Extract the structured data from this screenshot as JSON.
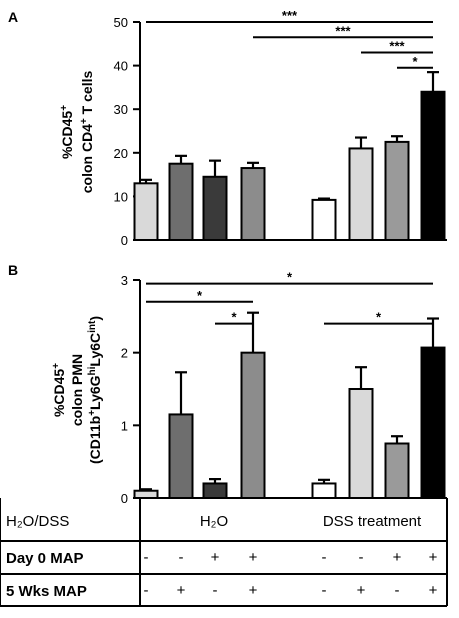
{
  "chart_data": [
    {
      "type": "bar",
      "panel": "A",
      "ylabel": [
        "%CD45",
        "colon CD4",
        "T cells"
      ],
      "ylim": [
        0,
        50
      ],
      "yticks": [
        "0",
        "10",
        "20",
        "30",
        "40",
        "50"
      ],
      "bars": [
        {
          "value": 13.0,
          "err": 0.8,
          "fill": "#d9d9d9"
        },
        {
          "value": 17.5,
          "err": 1.8,
          "fill": "#6e6e6e"
        },
        {
          "value": 14.5,
          "err": 3.7,
          "fill": "#3a3a3a"
        },
        {
          "value": 16.5,
          "err": 1.2,
          "fill": "#8c8c8c"
        },
        {
          "value": 9.2,
          "err": 0.3,
          "fill": "#ffffff"
        },
        {
          "value": 21.0,
          "err": 2.5,
          "fill": "#d9d9d9"
        },
        {
          "value": 22.5,
          "err": 1.3,
          "fill": "#9a9a9a"
        },
        {
          "value": 34.0,
          "err": 4.5,
          "fill": "#000000"
        }
      ],
      "significance": [
        {
          "from": 0,
          "to": 7,
          "y": 50,
          "label": "***"
        },
        {
          "from": 3,
          "to": 7,
          "y": 46.5,
          "label": "***"
        },
        {
          "from": 5,
          "to": 7,
          "y": 43,
          "label": "***"
        },
        {
          "from": 6,
          "to": 7,
          "y": 39.5,
          "label": "*"
        }
      ]
    },
    {
      "type": "bar",
      "panel": "B",
      "ylabel": [
        "%CD45",
        "colon PMN",
        "(CD11b",
        "Ly6G",
        "Ly6C",
        ")"
      ],
      "ylim": [
        0,
        3
      ],
      "yticks": [
        "0",
        "1",
        "2",
        "3"
      ],
      "bars": [
        {
          "value": 0.1,
          "err": 0.02,
          "fill": "#d9d9d9"
        },
        {
          "value": 1.15,
          "err": 0.58,
          "fill": "#6e6e6e"
        },
        {
          "value": 0.2,
          "err": 0.06,
          "fill": "#3a3a3a"
        },
        {
          "value": 2.0,
          "err": 0.55,
          "fill": "#8c8c8c"
        },
        {
          "value": 0.2,
          "err": 0.05,
          "fill": "#ffffff"
        },
        {
          "value": 1.5,
          "err": 0.3,
          "fill": "#d9d9d9"
        },
        {
          "value": 0.75,
          "err": 0.1,
          "fill": "#9a9a9a"
        },
        {
          "value": 2.07,
          "err": 0.4,
          "fill": "#000000"
        }
      ],
      "significance": [
        {
          "from": 0,
          "to": 7,
          "y": 2.95,
          "label": "*"
        },
        {
          "from": 0,
          "to": 3,
          "y": 2.7,
          "label": "*"
        },
        {
          "from": 2,
          "to": 3,
          "y": 2.4,
          "label": "*"
        },
        {
          "from": 4,
          "to": 7,
          "y": 2.4,
          "label": "*"
        }
      ]
    }
  ],
  "table": {
    "row1_label": "H₂O/DSS",
    "group1": "H₂O",
    "group2": "DSS treatment",
    "row2_label": "Day 0 MAP",
    "row2_values": [
      "-",
      "-",
      "+",
      "+",
      "-",
      "-",
      "+",
      "+"
    ],
    "row3_label": "5 Wks MAP",
    "row3_values": [
      "-",
      "+",
      "-",
      "+",
      "-",
      "+",
      "-",
      "+"
    ]
  }
}
